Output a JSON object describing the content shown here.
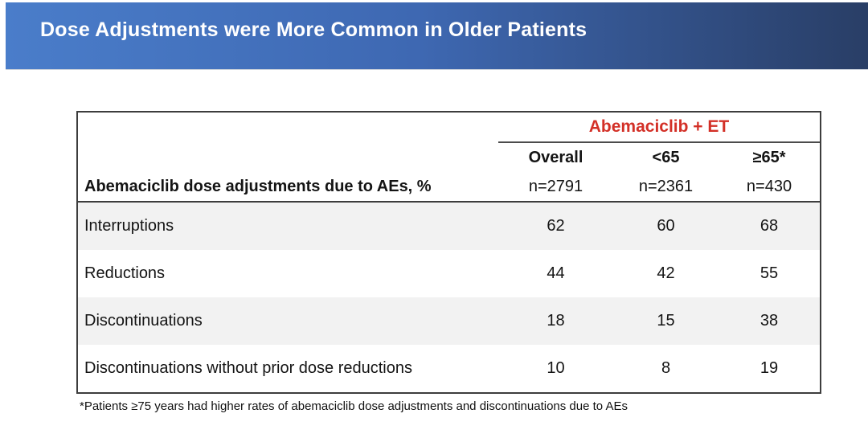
{
  "banner": {
    "title": "Dose Adjustments were More Common in Older Patients",
    "gradient_left": "#4a7dca",
    "gradient_right": "#293e66",
    "title_color": "#ffffff"
  },
  "table": {
    "group_header": "Abemaciclib + ET",
    "group_header_color": "#d33027",
    "row_group_header": "Abemaciclib dose adjustments due to AEs, %",
    "columns": [
      {
        "label": "Overall",
        "n": "n=2791"
      },
      {
        "label": "<65",
        "n": "n=2361"
      },
      {
        "label": "≥65*",
        "n": "n=430"
      }
    ],
    "rows": [
      {
        "label": "Interruptions",
        "values": [
          "62",
          "60",
          "68"
        ]
      },
      {
        "label": "Reductions",
        "values": [
          "44",
          "42",
          "55"
        ]
      },
      {
        "label": "Discontinuations",
        "values": [
          "18",
          "15",
          "38"
        ]
      },
      {
        "label": "Discontinuations without prior dose reductions",
        "values": [
          "10",
          "8",
          "19"
        ]
      }
    ],
    "shade_color": "#f2f2f2"
  },
  "footnote": "*Patients ≥75 years had higher rates of abemaciclib dose adjustments and discontinuations due to AEs"
}
